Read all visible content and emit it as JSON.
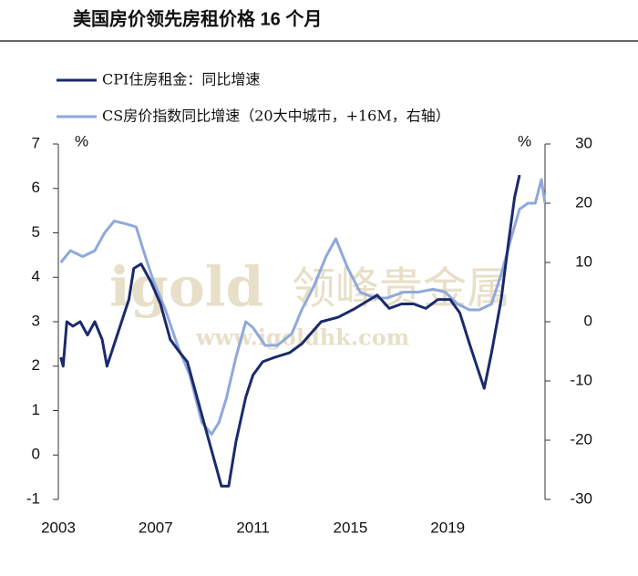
{
  "chart_data": {
    "type": "line",
    "title": "美国房价领先房租价格 16 个月",
    "y_unit": "%",
    "y2_unit": "%",
    "watermark": [
      "igold",
      "领峰贵金属",
      "www.igoldhk.com"
    ],
    "xlim": [
      2003,
      2023
    ],
    "xticks": [
      2003,
      2007,
      2011,
      2015,
      2019
    ],
    "ylim": [
      -1,
      7
    ],
    "yticks": [
      -1,
      0,
      1,
      2,
      3,
      4,
      5,
      6,
      7
    ],
    "y2lim": [
      -30,
      30
    ],
    "y2ticks": [
      -30,
      -20,
      -10,
      0,
      10,
      20,
      30
    ],
    "series": [
      {
        "name": "CPI住房租金：同比增速",
        "color": "#1b2a6b",
        "x": [
          2003.1,
          2003.2,
          2003.35,
          2003.6,
          2003.9,
          2004.2,
          2004.5,
          2004.8,
          2005.0,
          2005.3,
          2005.6,
          2005.9,
          2006.1,
          2006.4,
          2006.8,
          2007.2,
          2007.6,
          2008.0,
          2008.3,
          2008.6,
          2008.9,
          2009.2,
          2009.5,
          2009.7,
          2010.0,
          2010.3,
          2010.7,
          2011.0,
          2011.4,
          2011.9,
          2012.5,
          2013.0,
          2013.8,
          2014.5,
          2015.2,
          2015.8,
          2016.1,
          2016.6,
          2017.1,
          2017.6,
          2018.1,
          2018.6,
          2019.1,
          2019.5,
          2019.9,
          2020.2,
          2020.5,
          2020.8,
          2021.2,
          2021.5,
          2021.75,
          2021.95
        ],
        "values": [
          2.2,
          2.0,
          3.0,
          2.9,
          3.0,
          2.7,
          3.0,
          2.6,
          2.0,
          2.5,
          3.0,
          3.5,
          4.2,
          4.3,
          3.9,
          3.4,
          2.6,
          2.3,
          2.1,
          1.5,
          0.9,
          0.3,
          -0.3,
          -0.7,
          -0.7,
          0.3,
          1.3,
          1.8,
          2.1,
          2.2,
          2.3,
          2.5,
          3.0,
          3.1,
          3.3,
          3.5,
          3.6,
          3.3,
          3.4,
          3.4,
          3.3,
          3.5,
          3.5,
          3.2,
          2.5,
          2.0,
          1.5,
          2.3,
          3.5,
          4.8,
          5.8,
          6.3
        ]
      },
      {
        "name": "CS房价指数同比增速（20大中城市，+16M，右轴）",
        "color": "#8fa8dc",
        "axis": "y2",
        "x": [
          2003.1,
          2003.5,
          2004.0,
          2004.5,
          2004.9,
          2005.3,
          2005.8,
          2006.2,
          2006.5,
          2006.9,
          2007.4,
          2007.9,
          2008.4,
          2008.9,
          2009.3,
          2009.6,
          2009.9,
          2010.3,
          2010.7,
          2011.0,
          2011.5,
          2012.0,
          2012.6,
          2013.0,
          2013.5,
          2014.0,
          2014.4,
          2014.9,
          2015.4,
          2016.0,
          2016.5,
          2017.2,
          2017.8,
          2018.4,
          2018.9,
          2019.4,
          2019.9,
          2020.3,
          2020.8,
          2021.2,
          2021.6,
          2021.95,
          2022.3,
          2022.6,
          2022.85,
          2023.0
        ],
        "values": [
          10,
          12,
          11,
          12,
          15,
          17,
          16.5,
          16,
          12,
          7,
          2,
          -4,
          -9,
          -17,
          -19,
          -17,
          -13,
          -6,
          0,
          -1,
          -4,
          -4,
          -2,
          2,
          6,
          11,
          14,
          9,
          5,
          4,
          4,
          5,
          5,
          5.5,
          5,
          3,
          2,
          2,
          3,
          8,
          14,
          19,
          20,
          20,
          24,
          20
        ]
      }
    ]
  }
}
